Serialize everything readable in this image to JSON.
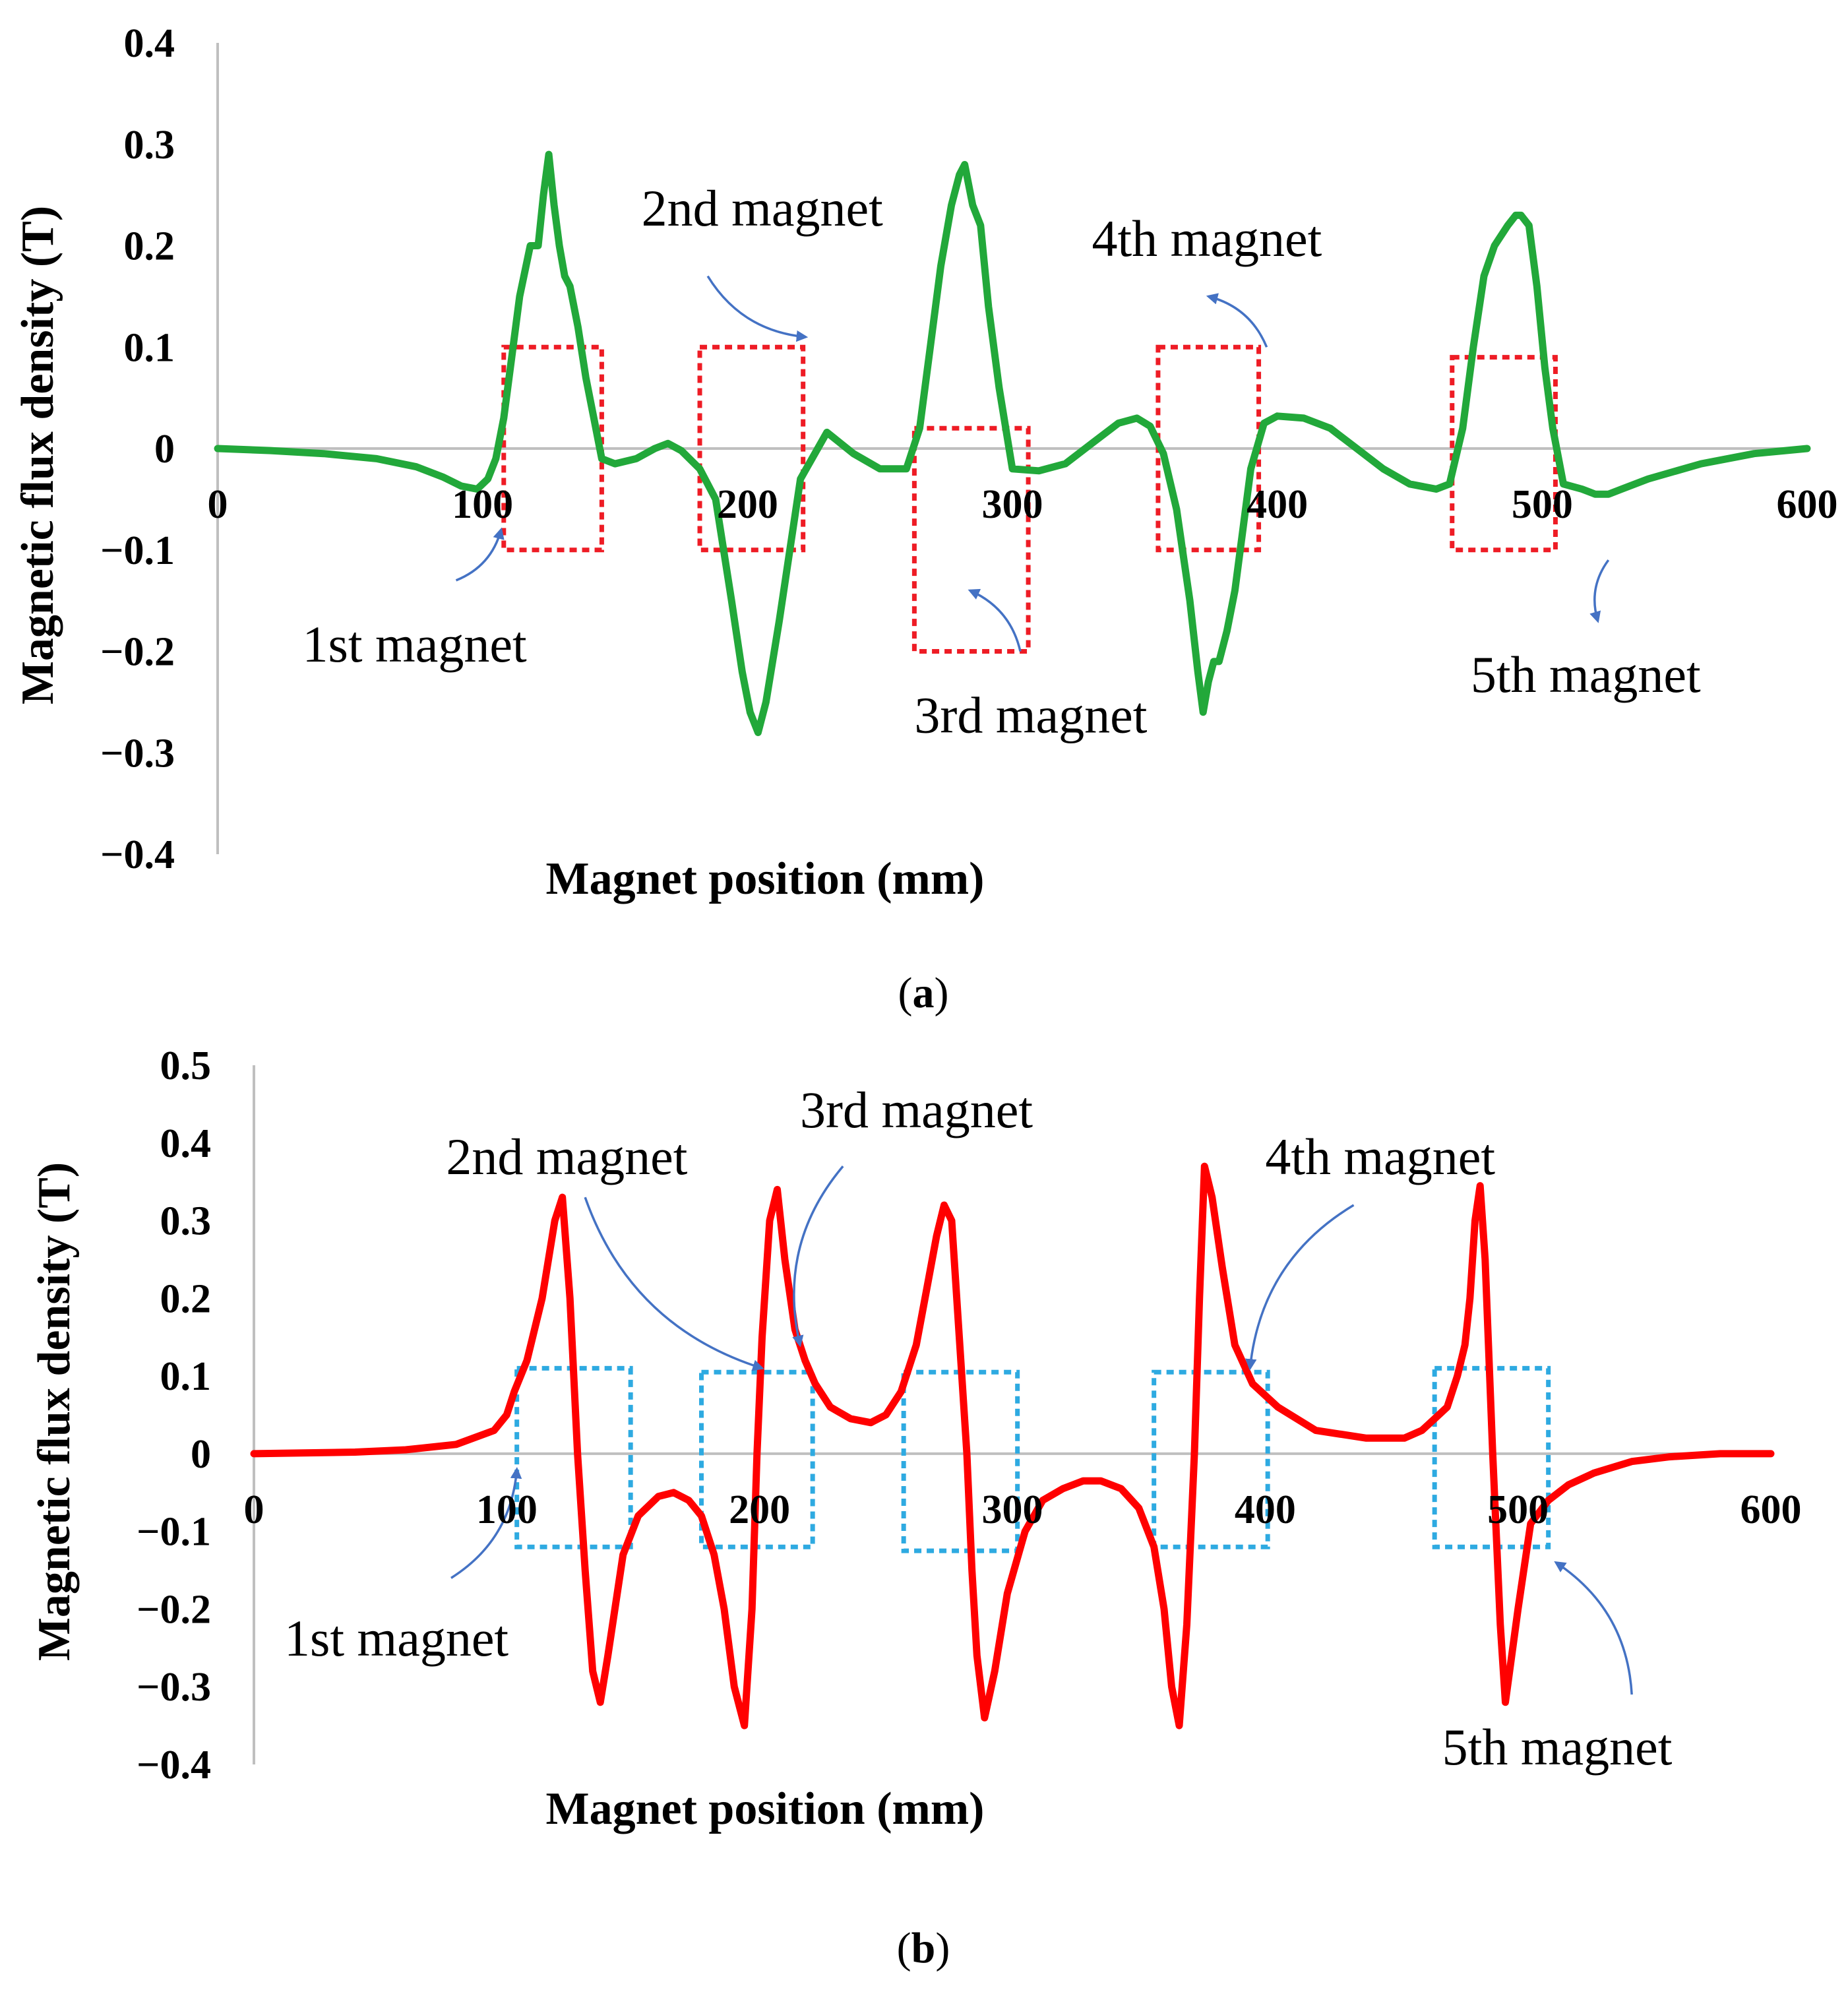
{
  "chart_data": [
    {
      "panel": "a",
      "caption_open": "(",
      "caption_letter": "a",
      "caption_close": ")",
      "type": "line",
      "xlabel": "Magnet position (mm)",
      "ylabel": "Magnetic flux density (T)",
      "xlim": [
        0,
        600
      ],
      "ylim": [
        -0.4,
        0.4
      ],
      "xticks": [
        0,
        100,
        200,
        300,
        400,
        500,
        600
      ],
      "xtick_labels": [
        "0",
        "100",
        "200",
        "300",
        "400",
        "500",
        "600"
      ],
      "yticks": [
        0.4,
        0.3,
        0.2,
        0.1,
        0,
        -0.1,
        -0.2,
        -0.3,
        -0.4
      ],
      "ytick_labels": [
        "0.4",
        "0.3",
        "0.2",
        "0.1",
        "0",
        "−0.1",
        "−0.2",
        "−0.3",
        "−0.4"
      ],
      "series": [
        {
          "name": "flux density",
          "color": "#22a83a",
          "x": [
            0,
            20,
            40,
            60,
            75,
            85,
            92,
            98,
            102,
            105,
            108,
            111,
            114,
            118,
            121,
            123,
            125,
            127,
            129,
            131,
            133,
            136,
            139,
            142,
            145,
            150,
            158,
            165,
            170,
            175,
            182,
            188,
            194,
            198,
            201,
            204,
            207,
            212,
            220,
            230,
            240,
            250,
            260,
            265,
            269,
            273,
            277,
            280,
            282,
            285,
            288,
            291,
            295,
            300,
            310,
            320,
            330,
            340,
            347,
            352,
            357,
            362,
            367,
            370,
            372,
            374,
            376,
            378,
            381,
            384,
            387,
            390,
            395,
            400,
            410,
            420,
            430,
            440,
            450,
            460,
            465,
            470,
            474,
            478,
            482,
            487,
            490,
            492,
            495,
            498,
            501,
            504,
            508,
            515,
            520,
            525,
            530,
            540,
            560,
            580,
            600
          ],
          "y": [
            0.0,
            -0.002,
            -0.005,
            -0.01,
            -0.018,
            -0.028,
            -0.037,
            -0.04,
            -0.03,
            -0.01,
            0.03,
            0.09,
            0.15,
            0.2,
            0.2,
            0.25,
            0.29,
            0.24,
            0.2,
            0.17,
            0.16,
            0.12,
            0.07,
            0.03,
            -0.01,
            -0.015,
            -0.01,
            0.0,
            0.005,
            -0.002,
            -0.02,
            -0.05,
            -0.15,
            -0.22,
            -0.26,
            -0.28,
            -0.25,
            -0.17,
            -0.03,
            0.016,
            -0.005,
            -0.02,
            -0.02,
            0.02,
            0.1,
            0.18,
            0.24,
            0.27,
            0.28,
            0.24,
            0.22,
            0.14,
            0.06,
            -0.02,
            -0.022,
            -0.015,
            0.005,
            0.025,
            0.03,
            0.022,
            -0.005,
            -0.06,
            -0.15,
            -0.22,
            -0.26,
            -0.23,
            -0.21,
            -0.21,
            -0.18,
            -0.14,
            -0.08,
            -0.02,
            0.025,
            0.032,
            0.03,
            0.02,
            0.0,
            -0.02,
            -0.035,
            -0.04,
            -0.035,
            0.02,
            0.1,
            0.17,
            0.2,
            0.22,
            0.23,
            0.23,
            0.22,
            0.16,
            0.08,
            0.02,
            -0.035,
            -0.04,
            -0.045,
            -0.045,
            -0.04,
            -0.03,
            -0.015,
            -0.005,
            0.0
          ]
        }
      ],
      "boxes": [
        {
          "x0": 108,
          "x1": 145,
          "y0": -0.1,
          "y1": 0.1,
          "color": "#ee1c25"
        },
        {
          "x0": 182,
          "x1": 221,
          "y0": -0.1,
          "y1": 0.1,
          "color": "#ee1c25"
        },
        {
          "x0": 263,
          "x1": 306,
          "y0": -0.2,
          "y1": 0.02,
          "color": "#ee1c25"
        },
        {
          "x0": 355,
          "x1": 393,
          "y0": -0.1,
          "y1": 0.1,
          "color": "#ee1c25"
        },
        {
          "x0": 466,
          "x1": 505,
          "y0": -0.1,
          "y1": 0.09,
          "color": "#ee1c25"
        }
      ],
      "annotations": [
        {
          "text": "1st magnet",
          "x": 32,
          "y": -0.21,
          "arrow_from": [
            90,
            -0.13
          ],
          "arrow_to": [
            107,
            -0.08
          ]
        },
        {
          "text": "2nd magnet",
          "x": 160,
          "y": 0.22,
          "arrow_from": [
            185,
            0.17
          ],
          "arrow_to": [
            222,
            0.11
          ]
        },
        {
          "text": "3rd magnet",
          "x": 263,
          "y": -0.28,
          "arrow_from": [
            303,
            -0.2
          ],
          "arrow_to": [
            284,
            -0.14
          ]
        },
        {
          "text": "4th magnet",
          "x": 330,
          "y": 0.19,
          "arrow_from": [
            396,
            0.1
          ],
          "arrow_to": [
            374,
            0.15
          ]
        },
        {
          "text": "5th magnet",
          "x": 473,
          "y": -0.24,
          "arrow_from": [
            525,
            -0.11
          ],
          "arrow_to": [
            521,
            -0.17
          ]
        }
      ],
      "arrow_color": "#4472c4"
    },
    {
      "panel": "b",
      "caption_open": "(",
      "caption_letter": "b",
      "caption_close": ")",
      "type": "line",
      "xlabel": "Magnet position (mm)",
      "ylabel": "Magnetic flux density (T)",
      "xlim": [
        0,
        600
      ],
      "ylim": [
        -0.4,
        0.5
      ],
      "xticks": [
        0,
        100,
        200,
        300,
        400,
        500,
        600
      ],
      "xtick_labels": [
        "0",
        "100",
        "200",
        "300",
        "400",
        "500",
        "600"
      ],
      "yticks": [
        0.5,
        0.4,
        0.3,
        0.2,
        0.1,
        0,
        -0.1,
        -0.2,
        -0.3,
        -0.4
      ],
      "ytick_labels": [
        "0.5",
        "0.4",
        "0.3",
        "0.2",
        "0.1",
        "0",
        "−0.1",
        "−0.2",
        "−0.3",
        "−0.4"
      ],
      "series": [
        {
          "name": "flux density",
          "color": "#ff0000",
          "x": [
            0,
            40,
            60,
            80,
            95,
            100,
            103,
            108,
            114,
            119,
            122,
            125,
            128,
            131,
            134,
            137,
            140,
            146,
            152,
            160,
            166,
            172,
            177,
            182,
            186,
            190,
            194,
            197,
            199,
            201,
            204,
            207,
            210,
            214,
            218,
            222,
            228,
            236,
            244,
            250,
            256,
            262,
            266,
            270,
            273,
            276,
            279,
            282,
            284,
            286,
            289,
            293,
            298,
            305,
            312,
            320,
            328,
            335,
            343,
            350,
            356,
            360,
            363,
            366,
            369,
            372,
            374,
            376,
            379,
            383,
            388,
            395,
            405,
            420,
            440,
            455,
            462,
            467,
            472,
            476,
            479,
            481,
            483,
            485,
            487,
            490,
            493,
            495,
            500,
            505,
            512,
            520,
            530,
            545,
            560,
            580,
            600
          ],
          "y": [
            0.0,
            0.002,
            0.005,
            0.012,
            0.03,
            0.05,
            0.08,
            0.12,
            0.2,
            0.3,
            0.33,
            0.2,
            0.0,
            -0.15,
            -0.28,
            -0.32,
            -0.26,
            -0.13,
            -0.08,
            -0.055,
            -0.05,
            -0.06,
            -0.08,
            -0.13,
            -0.2,
            -0.3,
            -0.35,
            -0.2,
            0.0,
            0.15,
            0.3,
            0.34,
            0.25,
            0.16,
            0.12,
            0.09,
            0.06,
            0.045,
            0.04,
            0.05,
            0.08,
            0.14,
            0.21,
            0.28,
            0.32,
            0.3,
            0.15,
            0.0,
            -0.15,
            -0.26,
            -0.34,
            -0.28,
            -0.18,
            -0.1,
            -0.06,
            -0.045,
            -0.035,
            -0.035,
            -0.045,
            -0.07,
            -0.12,
            -0.2,
            -0.3,
            -0.35,
            -0.22,
            0.0,
            0.2,
            0.37,
            0.33,
            0.24,
            0.14,
            0.09,
            0.06,
            0.03,
            0.02,
            0.02,
            0.03,
            0.045,
            0.06,
            0.1,
            0.14,
            0.2,
            0.3,
            0.345,
            0.25,
            0.0,
            -0.22,
            -0.32,
            -0.2,
            -0.09,
            -0.06,
            -0.04,
            -0.025,
            -0.01,
            -0.004,
            0.0,
            0.0
          ]
        }
      ],
      "boxes": [
        {
          "x0": 104,
          "x1": 149,
          "y0": -0.12,
          "y1": 0.11,
          "color": "#2eaae1"
        },
        {
          "x0": 177,
          "x1": 221,
          "y0": -0.12,
          "y1": 0.105,
          "color": "#2eaae1"
        },
        {
          "x0": 257,
          "x1": 302,
          "y0": -0.125,
          "y1": 0.105,
          "color": "#2eaae1"
        },
        {
          "x0": 356,
          "x1": 401,
          "y0": -0.12,
          "y1": 0.105,
          "color": "#2eaae1"
        },
        {
          "x0": 467,
          "x1": 512,
          "y0": -0.12,
          "y1": 0.11,
          "color": "#2eaae1"
        }
      ],
      "annotations": [
        {
          "text": "1st magnet",
          "x": 12,
          "y": -0.26,
          "arrow_from": [
            78,
            -0.16
          ],
          "arrow_to": [
            104,
            -0.02
          ]
        },
        {
          "text": "2nd magnet",
          "x": 76,
          "y": 0.36,
          "arrow_from": [
            131,
            0.33
          ],
          "arrow_to": [
            201,
            0.11
          ]
        },
        {
          "text": "3rd magnet",
          "x": 216,
          "y": 0.42,
          "arrow_from": [
            233,
            0.37
          ],
          "arrow_to": [
            216,
            0.14
          ]
        },
        {
          "text": "4th magnet",
          "x": 400,
          "y": 0.36,
          "arrow_from": [
            435,
            0.32
          ],
          "arrow_to": [
            394,
            0.11
          ]
        },
        {
          "text": "5th magnet",
          "x": 470,
          "y": -0.4,
          "arrow_from": [
            545,
            -0.31
          ],
          "arrow_to": [
            515,
            -0.14
          ]
        }
      ],
      "arrow_color": "#4472c4"
    }
  ]
}
